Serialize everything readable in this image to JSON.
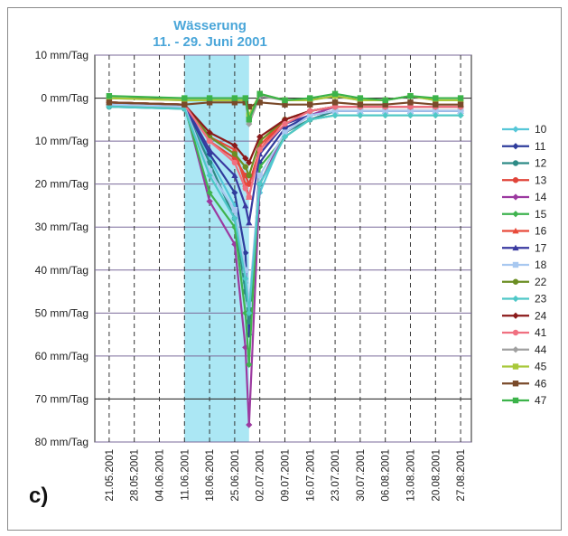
{
  "chart_data": {
    "type": "line",
    "title": "Wässerung",
    "subtitle": "11. - 29. Juni 2001",
    "panel_label": "c)",
    "xlabel": "",
    "ylabel": "",
    "x_dates": [
      "2001-05-21",
      "2001-06-11",
      "2001-06-18",
      "2001-06-25",
      "2001-06-28",
      "2001-06-29",
      "2001-07-02",
      "2001-07-09",
      "2001-07-16",
      "2001-07-23",
      "2001-07-30",
      "2001-08-06",
      "2001-08-13",
      "2001-08-20",
      "2001-08-27"
    ],
    "x_tick_labels": [
      "21.05.2001",
      "28.05.2001",
      "04.06.2001",
      "11.06.2001",
      "18.06.2001",
      "25.06.2001",
      "02.07.2001",
      "09.07.2001",
      "16.07.2001",
      "23.07.2001",
      "30.07.2001",
      "06.08.2001",
      "13.08.2001",
      "20.08.2001",
      "27.08.2001"
    ],
    "y_tick_labels": [
      "10 mm/Tag",
      "0 mm/Tag",
      "10 mm/Tag",
      "20 mm/Tag",
      "30 mm/Tag",
      "40 mm/Tag",
      "50 mm/Tag",
      "60 mm/Tag",
      "70 mm/Tag",
      "80 mm/Tag"
    ],
    "y_tick_values": [
      10,
      0,
      -10,
      -20,
      -30,
      -40,
      -50,
      -60,
      -70,
      -80
    ],
    "ylim": [
      -80,
      10
    ],
    "xlim": [
      "2001-05-17",
      "2001-08-30"
    ],
    "shaded_period": [
      "2001-06-11",
      "2001-06-29"
    ],
    "grid": true,
    "legend_position": "right",
    "series": [
      {
        "name": "10",
        "color": "#56c7d8",
        "marker": "diamond",
        "values": [
          -1.5,
          -2,
          -14,
          -25,
          -43,
          -48,
          -22,
          -8,
          -4,
          -2,
          -2,
          -2,
          -2,
          -2,
          -2
        ]
      },
      {
        "name": "11",
        "color": "#2f3d9c",
        "marker": "diamond",
        "values": [
          -1.5,
          -2,
          -13,
          -22,
          -36,
          -55,
          -15,
          -7,
          -4,
          -3,
          -3,
          -3,
          -3,
          -3,
          -3
        ]
      },
      {
        "name": "12",
        "color": "#2e8b86",
        "marker": "circle",
        "values": [
          -2,
          -2.5,
          -15,
          -28,
          -45,
          -52,
          -20,
          -8,
          -5,
          -3,
          -3,
          -3,
          -3,
          -3,
          -3
        ]
      },
      {
        "name": "13",
        "color": "#e0443a",
        "marker": "circle",
        "values": [
          -1,
          -1.5,
          -10,
          -14,
          -18,
          -20,
          -12,
          -5,
          -3,
          -2,
          -2,
          -2,
          -2,
          -2,
          -2
        ]
      },
      {
        "name": "14",
        "color": "#9c3aa0",
        "marker": "diamond",
        "values": [
          -1,
          -1.5,
          -24,
          -34,
          -58,
          -76,
          -20,
          -8,
          -4,
          -2,
          -2,
          -2,
          -2,
          -2,
          -2
        ]
      },
      {
        "name": "15",
        "color": "#3fb34f",
        "marker": "diamond",
        "values": [
          -2,
          -2,
          -22,
          -30,
          -50,
          -62,
          -16,
          -9,
          -5,
          -4,
          -4,
          -4,
          -4,
          -4,
          -4
        ]
      },
      {
        "name": "16",
        "color": "#e84a3a",
        "marker": "triangle",
        "values": [
          -1,
          -1.5,
          -9,
          -12,
          -20,
          -23,
          -11,
          -5,
          -3,
          -2,
          -2,
          -2,
          -2,
          -2,
          -2
        ]
      },
      {
        "name": "17",
        "color": "#3a3aa0",
        "marker": "triangle",
        "values": [
          -1,
          -1.5,
          -12,
          -18,
          -25,
          -29,
          -13,
          -6,
          -4,
          -3,
          -3,
          -3,
          -3,
          -3,
          -3
        ]
      },
      {
        "name": "18",
        "color": "#a8c8f0",
        "marker": "square",
        "values": [
          -1.5,
          -2,
          -17,
          -26,
          -40,
          -48,
          -18,
          -8,
          -4,
          -3,
          -3,
          -3,
          -3,
          -3,
          -3
        ]
      },
      {
        "name": "22",
        "color": "#6b8e23",
        "marker": "circle",
        "values": [
          -1,
          -1.5,
          -9,
          -13,
          -16,
          -18,
          -10,
          -5,
          -3,
          -2,
          -2,
          -2,
          -2,
          -2,
          -2
        ]
      },
      {
        "name": "23",
        "color": "#4fc8c8",
        "marker": "diamond",
        "values": [
          -2,
          -2.5,
          -18,
          -28,
          -42,
          -50,
          -20,
          -9,
          -5,
          -4,
          -4,
          -4,
          -4,
          -4,
          -4
        ]
      },
      {
        "name": "24",
        "color": "#8b1a1a",
        "marker": "diamond",
        "values": [
          -1,
          -1.5,
          -8,
          -11,
          -14,
          -15,
          -9,
          -5,
          -3,
          -2,
          -2,
          -2,
          -2,
          -2,
          -2
        ]
      },
      {
        "name": "41",
        "color": "#f07080",
        "marker": "circle",
        "values": [
          -1,
          -1.5,
          -10,
          -15,
          -21,
          -23,
          -12,
          -6,
          -3,
          -2,
          -2,
          -2,
          -2,
          -2,
          -2
        ]
      },
      {
        "name": "44",
        "color": "#a0a0a0",
        "marker": "diamond",
        "values": [
          0,
          -0.5,
          -0.5,
          -0.5,
          -0.5,
          -6,
          0.5,
          -0.5,
          -0.5,
          0.5,
          -0.5,
          -0.5,
          0.5,
          -0.5,
          -0.5
        ]
      },
      {
        "name": "45",
        "color": "#a8c83a",
        "marker": "square",
        "values": [
          0,
          -0.5,
          -0.5,
          -0.5,
          -0.5,
          -4,
          1,
          -0.5,
          -0.5,
          0.5,
          -0.5,
          -0.5,
          0.5,
          -0.5,
          -0.5
        ]
      },
      {
        "name": "46",
        "color": "#7a4a2a",
        "marker": "square",
        "values": [
          -1,
          -1.5,
          -1,
          -1,
          -1,
          -2,
          -1,
          -1.5,
          -1.5,
          -1,
          -1.5,
          -1.5,
          -1,
          -1.5,
          -1.5
        ]
      },
      {
        "name": "47",
        "color": "#3cb34a",
        "marker": "square",
        "values": [
          0.5,
          0,
          0,
          0,
          0,
          -5,
          1,
          -0.5,
          0,
          1,
          0,
          -0.5,
          0.5,
          0,
          0
        ]
      }
    ]
  }
}
